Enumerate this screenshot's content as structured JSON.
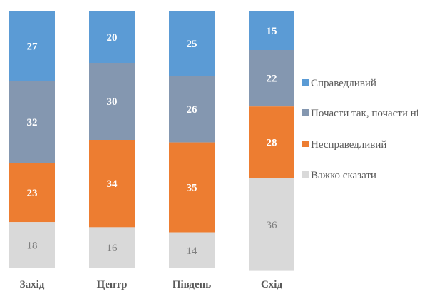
{
  "chart_data": {
    "type": "bar",
    "stacked": true,
    "percent": true,
    "title": "",
    "xlabel": "",
    "ylabel": "",
    "ylim": [
      0,
      100
    ],
    "grid": false,
    "legend_position": "right",
    "categories": [
      "Захід",
      "Центр",
      "Південь",
      "Схід"
    ],
    "series": [
      {
        "name": "Справедливий",
        "color": "#5b9bd5",
        "label_color": "#ffffff",
        "values": [
          27,
          20,
          25,
          15
        ]
      },
      {
        "name": "Почасти так, почасти ні",
        "color": "#8497b0",
        "label_color": "#ffffff",
        "values": [
          32,
          30,
          26,
          22
        ]
      },
      {
        "name": "Несправедливий",
        "color": "#ed7d31",
        "label_color": "#ffffff",
        "values": [
          23,
          34,
          35,
          28
        ]
      },
      {
        "name": "Важко сказати",
        "color": "#d9d9d9",
        "label_color": "#7f7f7f",
        "values": [
          18,
          16,
          14,
          36
        ]
      }
    ]
  }
}
